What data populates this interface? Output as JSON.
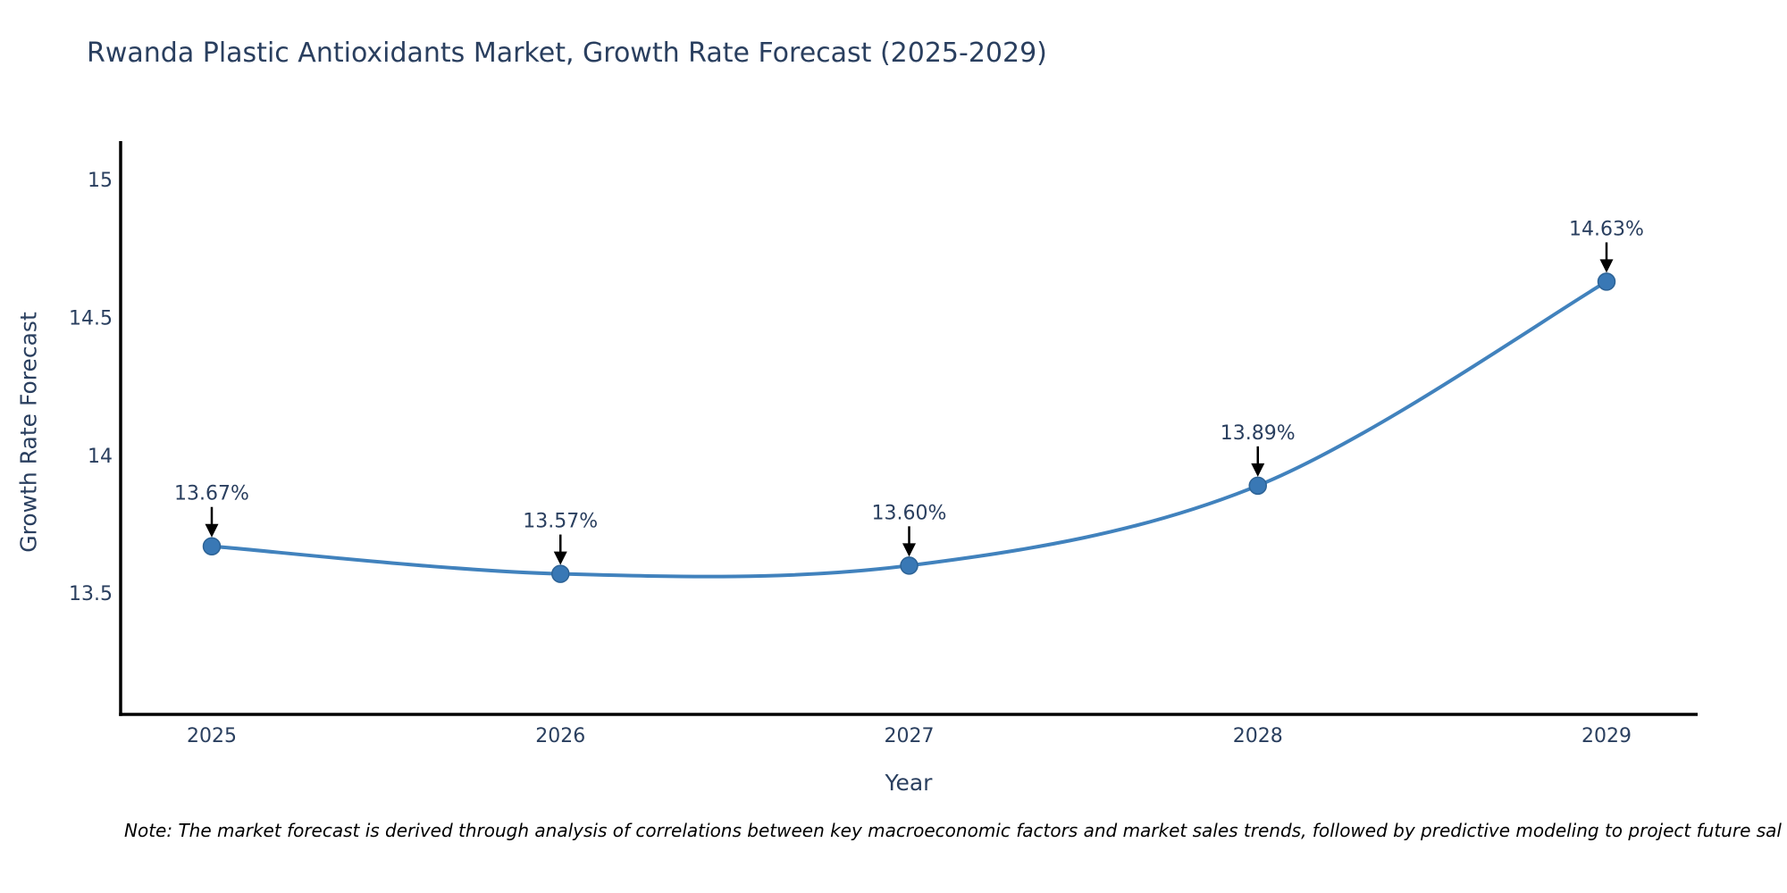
{
  "chart": {
    "title": "Rwanda Plastic Antioxidants Market, Growth Rate Forecast (2025-2029)",
    "xlabel": "Year",
    "ylabel": "Growth Rate Forecast",
    "note": "Note: The market forecast is derived through analysis of correlations between key macroeconomic factors and market sales trends, followed by predictive modeling to project future sal"
  },
  "chart_data": {
    "type": "line",
    "title": "Rwanda Plastic Antioxidants Market, Growth Rate Forecast (2025-2029)",
    "xlabel": "Year",
    "ylabel": "Growth Rate Forecast",
    "categories": [
      "2025",
      "2026",
      "2027",
      "2028",
      "2029"
    ],
    "values": [
      13.67,
      13.57,
      13.6,
      13.89,
      14.63
    ],
    "point_labels": [
      "13.67%",
      "13.57%",
      "13.60%",
      "13.89%",
      "14.63%"
    ],
    "yticks": [
      15,
      14.5,
      14,
      13.5
    ],
    "ytick_labels": [
      "15",
      "14.5",
      "14",
      "13.5"
    ],
    "ylim": [
      13.06,
      15.14
    ],
    "grid": false,
    "legend": false,
    "smooth_spline": true,
    "colors": {
      "line": "#4182bd",
      "marker_fill": "#3978b5",
      "marker_edge": "#2d6396",
      "axis": "#000000",
      "arrow": "#000000",
      "text": "#2a3f5f",
      "note_text": "#000000"
    }
  }
}
